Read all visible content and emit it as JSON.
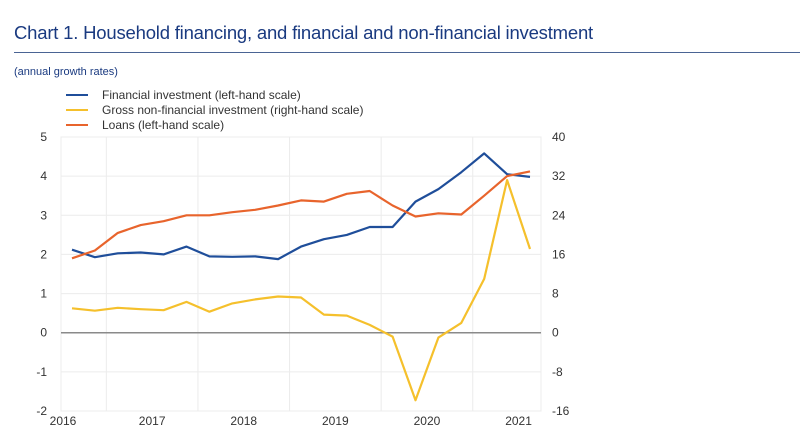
{
  "header": {
    "title": "Chart 1. Household financing, and financial and non-financial investment",
    "subtitle": "(annual growth rates)"
  },
  "colors": {
    "title": "#1a3a80",
    "financial": "#1f4e9a",
    "gross": "#f5c02c",
    "loans": "#e8642c",
    "zero_line": "#8a8a8a",
    "grid": "#ececec"
  },
  "chart_data": {
    "type": "line",
    "title": "Chart 1. Household financing, and financial and non-financial investment",
    "subtitle": "(annual growth rates)",
    "xlabel": "",
    "ylabel_left": "",
    "ylabel_right": "",
    "x": [
      "2016Q3",
      "2016Q4",
      "2017Q1",
      "2017Q2",
      "2017Q3",
      "2017Q4",
      "2018Q1",
      "2018Q2",
      "2018Q3",
      "2018Q4",
      "2019Q1",
      "2019Q2",
      "2019Q3",
      "2019Q4",
      "2020Q1",
      "2020Q2",
      "2020Q3",
      "2020Q4",
      "2021Q1",
      "2021Q2",
      "2021Q3"
    ],
    "x_tick_labels": [
      "2016",
      "2017",
      "2018",
      "2019",
      "2020",
      "2021"
    ],
    "y_left": {
      "range": [
        -2,
        5
      ],
      "ticks": [
        5,
        4,
        3,
        2,
        1,
        0,
        -1,
        -2
      ]
    },
    "y_right": {
      "range": [
        -16,
        40
      ],
      "ticks": [
        40,
        32,
        24,
        16,
        8,
        0,
        -8,
        -16
      ]
    },
    "grid": true,
    "legend_position": "top-left",
    "series": [
      {
        "name": "Financial investment (left-hand scale)",
        "axis": "left",
        "color": "#1f4e9a",
        "values": [
          2.12,
          1.93,
          2.03,
          2.05,
          2.0,
          2.2,
          1.95,
          1.94,
          1.95,
          1.88,
          2.2,
          2.39,
          2.5,
          2.7,
          2.7,
          3.35,
          3.67,
          4.1,
          4.58,
          4.05,
          3.98
        ]
      },
      {
        "name": "Gross non-financial investment (right-hand scale)",
        "axis": "right",
        "color": "#f5c02c",
        "values": [
          5.0,
          4.5,
          5.1,
          4.8,
          4.6,
          6.3,
          4.3,
          6.0,
          6.8,
          7.4,
          7.2,
          3.7,
          3.5,
          1.6,
          -0.8,
          -13.8,
          -1.0,
          2.0,
          11.0,
          31.2,
          17.1
        ]
      },
      {
        "name": "Loans (left-hand scale)",
        "axis": "left",
        "color": "#e8642c",
        "values": [
          1.9,
          2.1,
          2.55,
          2.75,
          2.85,
          3.0,
          3.0,
          3.08,
          3.14,
          3.25,
          3.38,
          3.35,
          3.55,
          3.62,
          3.25,
          2.97,
          3.05,
          3.02,
          3.5,
          4.0,
          4.12
        ]
      }
    ]
  }
}
